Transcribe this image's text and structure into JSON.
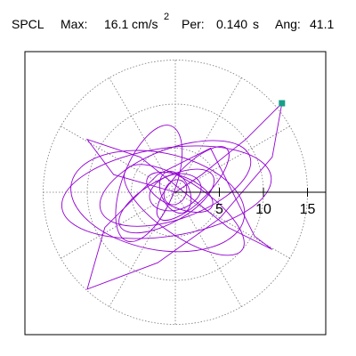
{
  "header": {
    "label": "SPCL",
    "max_label": "Max:",
    "max_value": "16.1",
    "max_unit": "cm/s",
    "max_unit_exp": "2",
    "per_label": "Per:",
    "per_value": "0.140",
    "per_unit": "s",
    "ang_label": "Ang:",
    "ang_value": "41.1"
  },
  "chart_data": {
    "type": "polar-orbit",
    "title": "",
    "radial_ticks": [
      5,
      10,
      15
    ],
    "radial_tick_labels": [
      "5",
      "10",
      "15"
    ],
    "r_max": 16.1,
    "grid_rings": [
      5,
      10,
      15
    ],
    "spoke_angles_deg": [
      0,
      30,
      60,
      90,
      120,
      150,
      180,
      210,
      240,
      270,
      300,
      330
    ],
    "curve_color": "#9400d3",
    "marker_color": "#1a9e8a",
    "marker_point": {
      "x": 12.1,
      "y": 10.1
    },
    "orbit": {
      "approx_points": [
        {
          "x": 0,
          "y": 0
        },
        {
          "x": 3,
          "y": 2
        },
        {
          "x": 8,
          "y": 6
        },
        {
          "x": 12.1,
          "y": 10.1
        },
        {
          "x": 11,
          "y": 4
        },
        {
          "x": 5,
          "y": -3
        },
        {
          "x": -2,
          "y": -8
        },
        {
          "x": -10,
          "y": -11
        },
        {
          "x": -8,
          "y": -4
        },
        {
          "x": -2,
          "y": 2
        },
        {
          "x": 4,
          "y": 5
        },
        {
          "x": 9,
          "y": -5
        },
        {
          "x": 11,
          "y": -6.5
        },
        {
          "x": 6,
          "y": -4
        },
        {
          "x": -4,
          "y": 4
        },
        {
          "x": -10,
          "y": 6
        },
        {
          "x": -7,
          "y": 2
        },
        {
          "x": 0,
          "y": 0
        }
      ]
    }
  }
}
